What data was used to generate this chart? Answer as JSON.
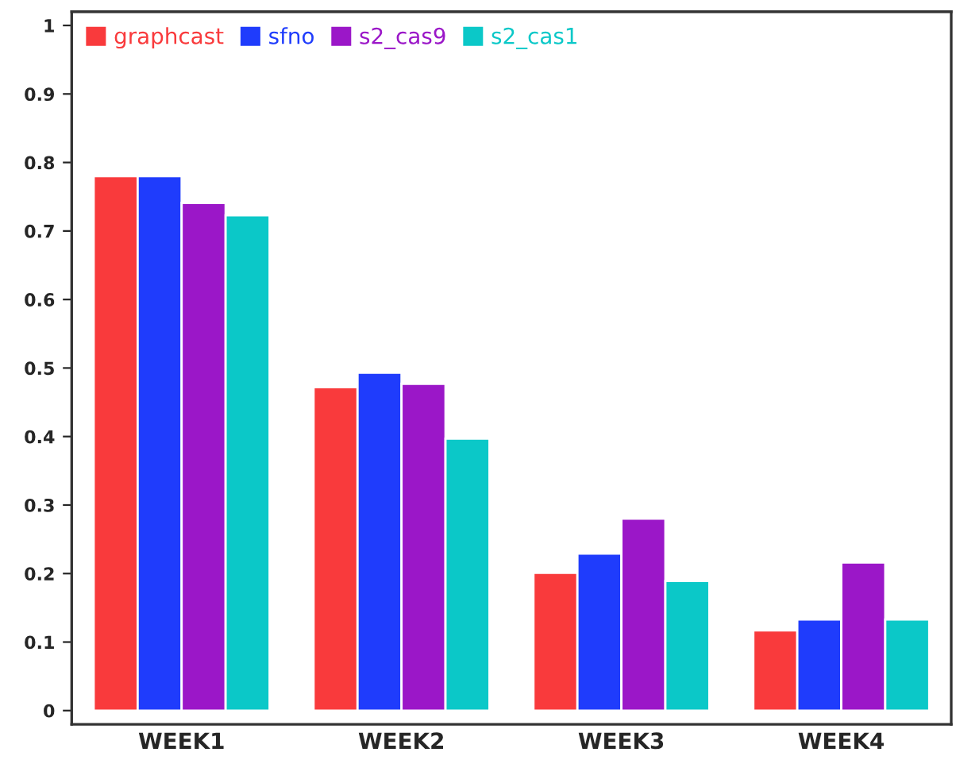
{
  "chart_data": {
    "type": "bar",
    "categories": [
      "WEEK1",
      "WEEK2",
      "WEEK3",
      "WEEK4"
    ],
    "series": [
      {
        "name": "graphcast",
        "color": "#f93a3c",
        "values": [
          0.78,
          0.472,
          0.201,
          0.117
        ]
      },
      {
        "name": "sfno",
        "color": "#1f3cfc",
        "values": [
          0.78,
          0.493,
          0.229,
          0.133
        ]
      },
      {
        "name": "s2_cas9",
        "color": "#9b17c8",
        "values": [
          0.741,
          0.477,
          0.28,
          0.216
        ]
      },
      {
        "name": "s2_cas1",
        "color": "#0bc8c8",
        "values": [
          0.723,
          0.397,
          0.189,
          0.133
        ]
      }
    ],
    "ylim": [
      -0.02,
      1.02
    ],
    "yticks": [
      0,
      0.1,
      0.2,
      0.3,
      0.4,
      0.5,
      0.6,
      0.7,
      0.8,
      0.9,
      1
    ],
    "grid": false,
    "legend": "top left"
  }
}
